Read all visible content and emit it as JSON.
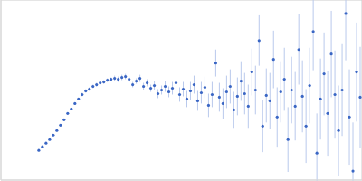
{
  "chart_data": {
    "type": "scatter",
    "color": "#3a66c4",
    "marker": "circle",
    "grid": true,
    "tick_labels": false,
    "xlim": [
      0,
      400
    ],
    "ylim": [
      0,
      200
    ],
    "xticks": [
      115
    ],
    "yticks": [
      100
    ],
    "x": [
      42,
      46,
      50,
      54,
      58,
      62,
      66,
      70,
      74,
      78,
      82,
      86,
      90,
      94,
      98,
      102,
      106,
      110,
      114,
      118,
      122,
      126,
      130,
      134,
      138,
      142,
      146,
      150,
      154,
      158,
      162,
      166,
      170,
      174,
      178,
      182,
      186,
      190,
      194,
      198,
      202,
      206,
      210,
      214,
      218,
      222,
      226,
      230,
      234,
      238,
      242,
      246,
      250,
      254,
      258,
      262,
      266,
      270,
      274,
      278,
      282,
      286,
      290,
      294,
      298,
      302,
      306,
      310,
      314,
      318,
      322,
      326,
      330,
      334,
      338,
      342,
      346,
      350,
      354,
      358,
      362,
      366,
      370,
      374,
      378,
      382,
      386,
      390,
      394,
      398
    ],
    "values": [
      33,
      37,
      41,
      45,
      50,
      55,
      61,
      67,
      74,
      79,
      85,
      90,
      95,
      99,
      101,
      104,
      106,
      108,
      109,
      111,
      112,
      113,
      112,
      114,
      115,
      112,
      106,
      110,
      113,
      104,
      108,
      102,
      105,
      96,
      100,
      104,
      98,
      102,
      108,
      95,
      101,
      90,
      99,
      106,
      88,
      97,
      103,
      83,
      95,
      130,
      92,
      85,
      98,
      104,
      78,
      93,
      110,
      96,
      82,
      120,
      100,
      155,
      60,
      94,
      88,
      134,
      70,
      98,
      112,
      45,
      100,
      82,
      145,
      93,
      60,
      105,
      165,
      30,
      90,
      118,
      74,
      140,
      95,
      55,
      100,
      185,
      70,
      10,
      120,
      92
    ],
    "errors": [
      1,
      1,
      1,
      1,
      1,
      1,
      1,
      1,
      1,
      1,
      1,
      1,
      2,
      2,
      2,
      2,
      2,
      2,
      2,
      2,
      2,
      3,
      3,
      3,
      3,
      3,
      3,
      3,
      4,
      4,
      4,
      4,
      5,
      5,
      5,
      6,
      6,
      7,
      7,
      8,
      8,
      9,
      10,
      10,
      11,
      12,
      12,
      13,
      14,
      15,
      16,
      17,
      18,
      19,
      20,
      21,
      22,
      23,
      24,
      26,
      27,
      28,
      29,
      30,
      31,
      32,
      33,
      34,
      35,
      36,
      37,
      38,
      39,
      40,
      41,
      42,
      43,
      44,
      45,
      46,
      47,
      48,
      49,
      50,
      51,
      52,
      53,
      54,
      55,
      56
    ]
  }
}
